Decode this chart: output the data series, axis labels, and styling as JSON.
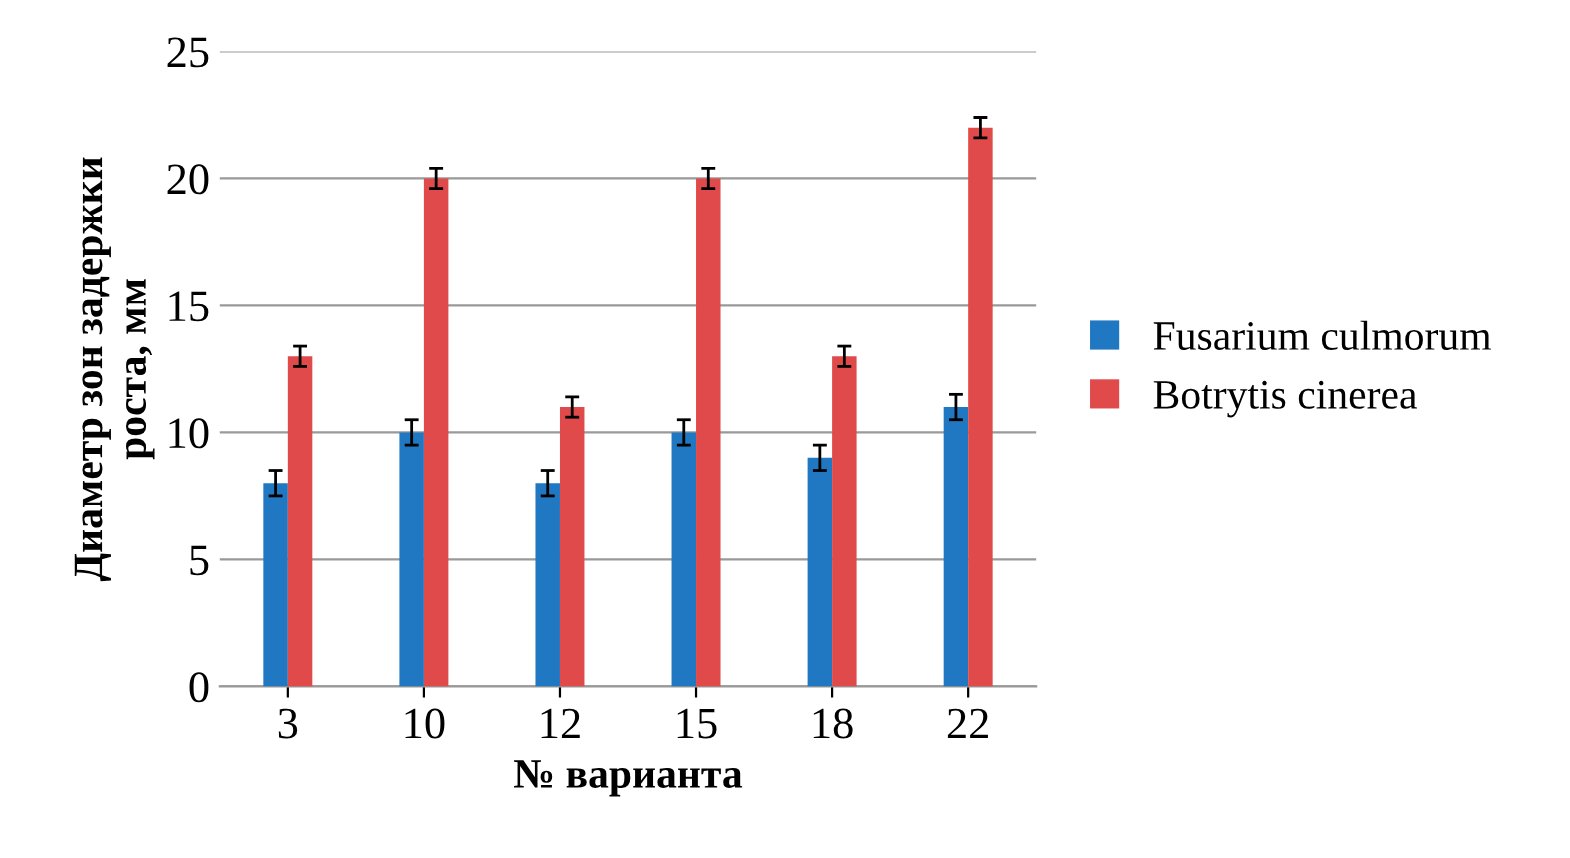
{
  "chart_data": {
    "type": "bar",
    "xlabel": "№ варианта",
    "ylabel": "Диаметр зон задержки\nроста, мм",
    "categories": [
      "3",
      "10",
      "12",
      "15",
      "18",
      "22"
    ],
    "series": [
      {
        "name": "Fusarium culmorum",
        "color": "#1f78c1",
        "values": [
          8,
          10,
          8,
          10,
          9,
          11
        ],
        "errors": [
          0.5,
          0.5,
          0.5,
          0.5,
          0.5,
          0.5
        ]
      },
      {
        "name": "Botrytis cinerea",
        "color": "#e04a4a",
        "values": [
          13,
          20,
          11,
          20,
          13,
          22
        ],
        "errors": [
          0.4,
          0.4,
          0.4,
          0.4,
          0.4,
          0.4
        ]
      }
    ],
    "ylim": [
      0,
      25
    ],
    "yticks": [
      0,
      5,
      10,
      15,
      20,
      25
    ],
    "grid": "y",
    "legend": "right"
  }
}
